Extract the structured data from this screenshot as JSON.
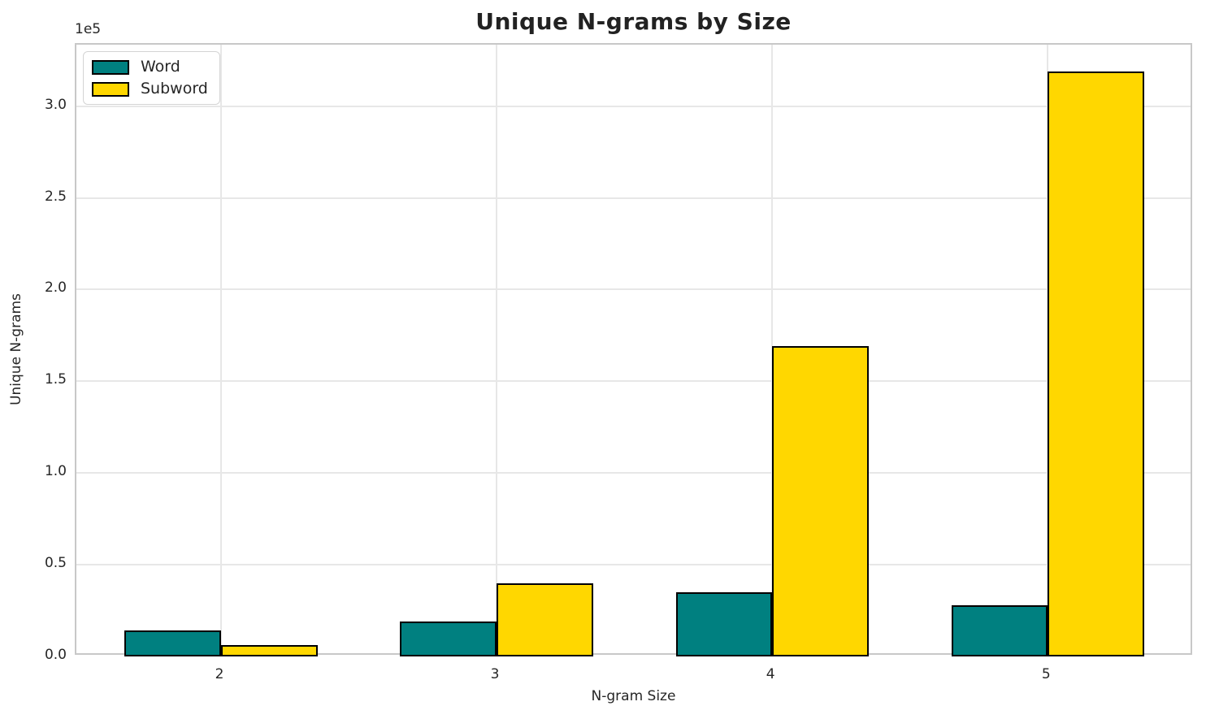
{
  "chart_data": {
    "type": "bar",
    "title": "Unique N-grams by Size",
    "xlabel": "N-gram Size",
    "ylabel": "Unique N-grams",
    "y_offset_text": "1e5",
    "categories": [
      "2",
      "3",
      "4",
      "5"
    ],
    "category_positions": [
      2,
      3,
      4,
      5
    ],
    "series": [
      {
        "name": "Word",
        "color": "#008080",
        "values": [
          14000,
          19000,
          35000,
          28000
        ]
      },
      {
        "name": "Subword",
        "color": "#FFD700",
        "values": [
          6000,
          40000,
          169000,
          319000
        ]
      }
    ],
    "bar_width": 0.35,
    "bar_edge_color": "#000000",
    "xlim": [
      1.475,
      5.53
    ],
    "ylim": [
      0,
      333500
    ],
    "yticks": [
      {
        "label": "0.0",
        "value": 0
      },
      {
        "label": "0.5",
        "value": 50000
      },
      {
        "label": "1.0",
        "value": 100000
      },
      {
        "label": "1.5",
        "value": 150000
      },
      {
        "label": "2.0",
        "value": 200000
      },
      {
        "label": "2.5",
        "value": 250000
      },
      {
        "label": "3.0",
        "value": 300000
      }
    ],
    "grid": true,
    "legend_position": "upper left",
    "colors": {
      "grid": "#e7e7e7",
      "spine": "#c8c8c8",
      "text": "#262626"
    }
  }
}
